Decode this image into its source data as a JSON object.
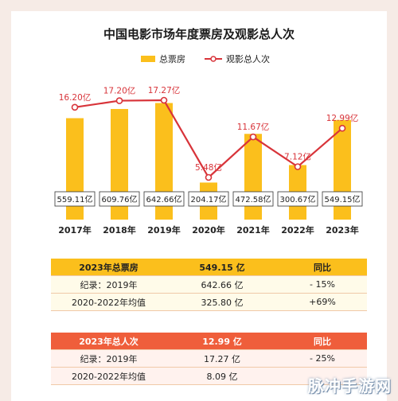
{
  "chart_data": {
    "type": "bar",
    "title": "中国电影市场年度票房及观影总人次",
    "categories": [
      "2017年",
      "2018年",
      "2019年",
      "2020年",
      "2021年",
      "2022年",
      "2023年"
    ],
    "series": [
      {
        "name": "总票房",
        "type": "bar",
        "unit": "亿",
        "values": [
          559.11,
          609.76,
          642.66,
          204.17,
          472.58,
          300.67,
          549.15
        ],
        "labels": [
          "559.11亿",
          "609.76亿",
          "642.66亿",
          "204.17亿",
          "472.58亿",
          "300.67亿",
          "549.15亿"
        ],
        "color": "#fbbf1c"
      },
      {
        "name": "观影总人次",
        "type": "line",
        "unit": "亿",
        "values": [
          16.2,
          17.2,
          17.27,
          5.48,
          11.67,
          7.12,
          12.99
        ],
        "labels": [
          "16.20亿",
          "17.20亿",
          "17.27亿",
          "5.48亿",
          "11.67亿",
          "7.12亿",
          "12.99亿"
        ],
        "color": "#d8343a"
      }
    ],
    "legend_position": "top-center",
    "grid": false
  },
  "tables": {
    "box_office": {
      "header": [
        "2023年总票房",
        "549.15 亿",
        "同比"
      ],
      "rows": [
        [
          "纪录：2019年",
          "642.66 亿",
          "- 15%"
        ],
        [
          "2020-2022年均值",
          "325.80 亿",
          "+69%"
        ]
      ]
    },
    "audience": {
      "header": [
        "2023年总人次",
        "12.99 亿",
        "同比"
      ],
      "rows": [
        [
          "纪录：2019年",
          "17.27 亿",
          "- 25%"
        ],
        [
          "2020-2022年均值",
          "8.09 亿",
          ""
        ]
      ]
    }
  },
  "watermark": "脉冲手游网",
  "colors": {
    "background": "#f6ebe6",
    "bar": "#fbbf1c",
    "line": "#d8343a",
    "header_orange": "#ef5e3b"
  }
}
